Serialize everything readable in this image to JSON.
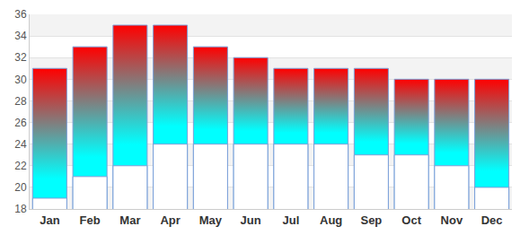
{
  "chart_data": {
    "type": "bar",
    "categories": [
      "Jan",
      "Feb",
      "Mar",
      "Apr",
      "May",
      "Jun",
      "Jul",
      "Aug",
      "Sep",
      "Oct",
      "Nov",
      "Dec"
    ],
    "series": [
      {
        "color": "#ff0000",
        "values": [
          31,
          33,
          35,
          35,
          33,
          32,
          31,
          31,
          31,
          30,
          30,
          30
        ]
      },
      {
        "color": "#ffffff",
        "values": [
          19,
          21,
          22,
          24,
          24,
          24,
          24,
          24,
          23,
          23,
          22,
          20
        ]
      }
    ],
    "ylim": [
      18,
      36
    ],
    "yticks": [
      18,
      20,
      22,
      24,
      26,
      28,
      30,
      32,
      34,
      36
    ],
    "grid": true
  }
}
